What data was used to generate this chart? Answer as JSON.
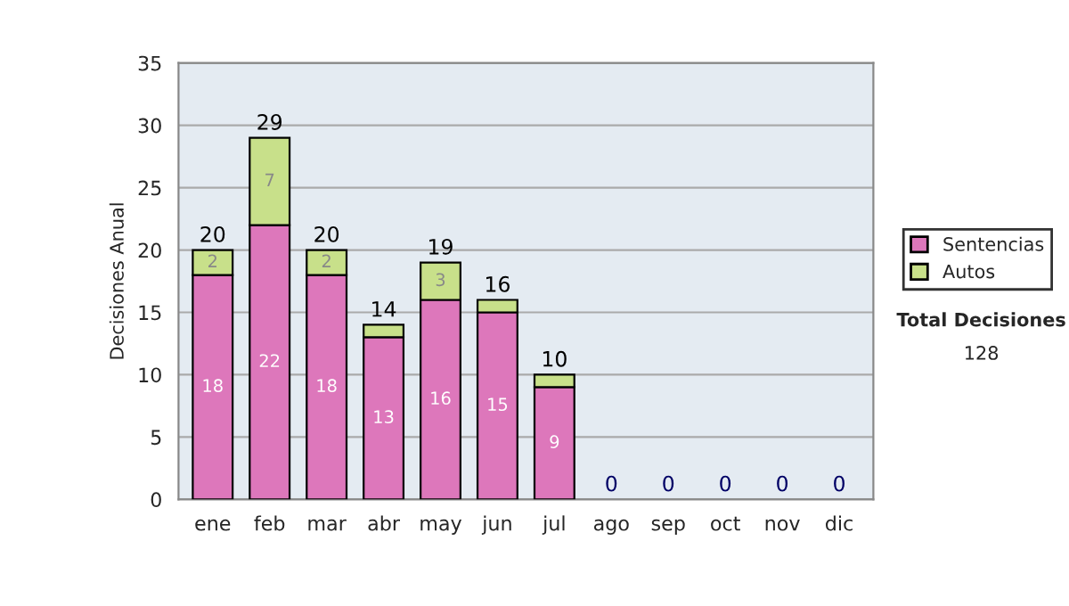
{
  "chart_data": {
    "type": "bar",
    "stacked": true,
    "ylabel": "Decisiones Anual",
    "categories": [
      "ene",
      "feb",
      "mar",
      "abr",
      "may",
      "jun",
      "jul",
      "ago",
      "sep",
      "oct",
      "nov",
      "dic"
    ],
    "series": [
      {
        "name": "Sentencias",
        "color": "#dd77bb",
        "values": [
          18,
          22,
          18,
          13,
          16,
          15,
          9,
          0,
          0,
          0,
          0,
          0
        ],
        "value_labels": [
          "18",
          "22",
          "18",
          "13",
          "16",
          "15",
          "9",
          null,
          null,
          null,
          null,
          null
        ]
      },
      {
        "name": "Autos",
        "color": "#c8e08a",
        "values": [
          2,
          7,
          2,
          1,
          3,
          1,
          1,
          0,
          0,
          0,
          0,
          0
        ],
        "value_labels": [
          "2",
          "7",
          "2",
          null,
          "3",
          null,
          null,
          null,
          null,
          null,
          null,
          null
        ]
      }
    ],
    "totals": [
      "20",
      "29",
      "20",
      "14",
      "19",
      "16",
      "10",
      "0",
      "0",
      "0",
      "0",
      "0"
    ],
    "ylim": [
      0,
      35
    ],
    "yticks": [
      0,
      5,
      10,
      15,
      20,
      25,
      30,
      35
    ],
    "grid": "y",
    "legend": "right",
    "annotations": [
      "Total Decisiones",
      "128"
    ]
  }
}
